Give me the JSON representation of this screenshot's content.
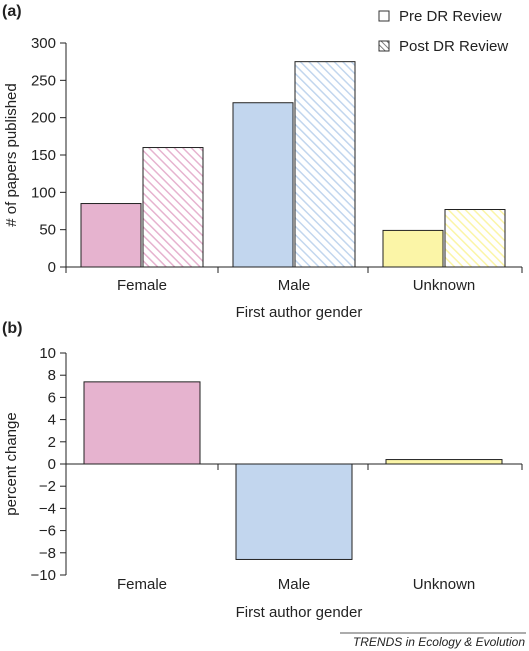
{
  "colors": {
    "female": "#e6b3cf",
    "male": "#c2d6ee",
    "unknown": "#fbf5a7",
    "outline": "#222222"
  },
  "panel_a": {
    "label": "(a)",
    "legend": [
      "Pre DR Review",
      "Post DR Review"
    ]
  },
  "panel_b": {
    "label": "(b)"
  },
  "footer": "TRENDS in Ecology & Evolution",
  "chart_data": [
    {
      "type": "bar",
      "categories": [
        "Female",
        "Male",
        "Unknown"
      ],
      "series": [
        {
          "name": "Pre DR Review",
          "values": [
            85,
            220,
            49
          ],
          "pattern": "solid"
        },
        {
          "name": "Post DR Review",
          "values": [
            160,
            275,
            77
          ],
          "pattern": "hatched"
        }
      ],
      "xlabel": "First author gender",
      "ylabel": "# of papers published",
      "ylim": [
        0,
        300
      ],
      "yticks": [
        0,
        50,
        100,
        150,
        200,
        250,
        300
      ],
      "legend_position": "top-right",
      "grid": false
    },
    {
      "type": "bar",
      "categories": [
        "Female",
        "Male",
        "Unknown"
      ],
      "values": [
        7.4,
        -8.6,
        0.4
      ],
      "xlabel": "First author gender",
      "ylabel": "percent change",
      "ylim": [
        -10,
        10
      ],
      "yticks": [
        -10,
        -8,
        -6,
        -4,
        -2,
        0,
        2,
        4,
        6,
        8,
        10
      ],
      "grid": false
    }
  ]
}
